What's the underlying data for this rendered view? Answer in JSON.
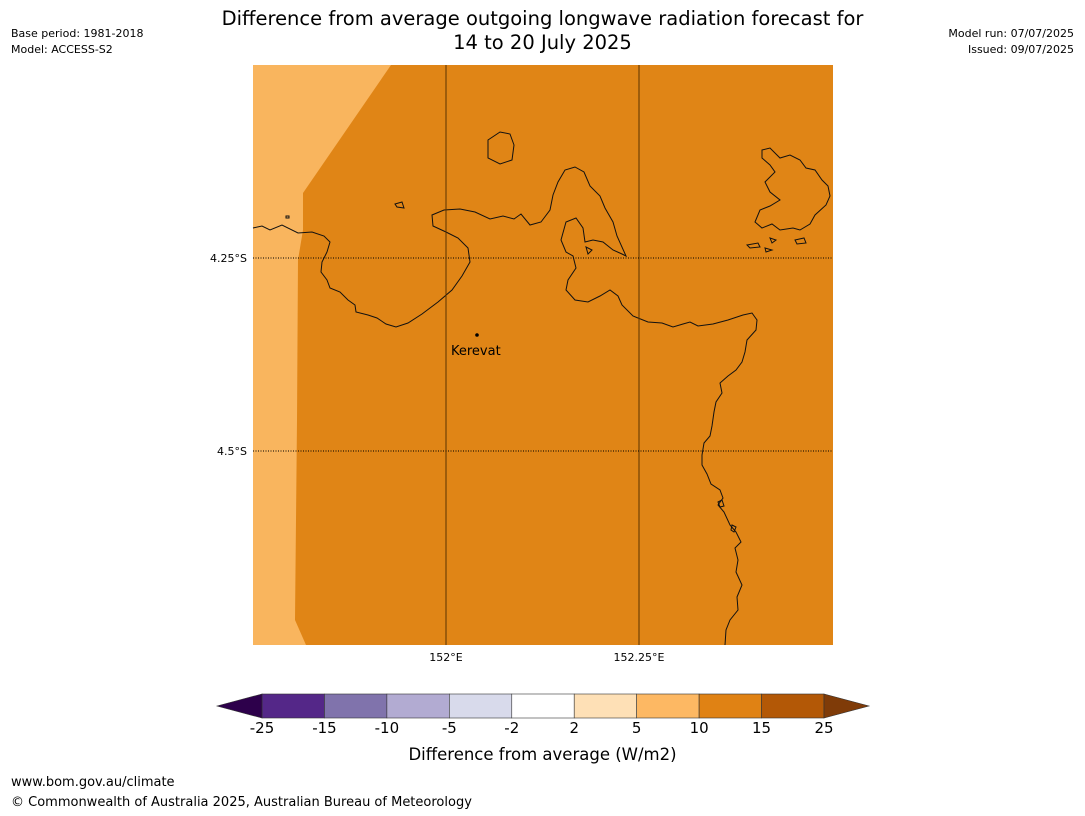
{
  "title": "Difference from average outgoing longwave radiation forecast for\n14 to 20 July 2025",
  "meta_left": {
    "base_period": "Base period: 1981-2018",
    "model": "Model: ACCESS-S2"
  },
  "meta_right": {
    "model_run": "Model run: 07/07/2025",
    "issued": "Issued: 09/07/2025"
  },
  "map": {
    "lon_ticks": [
      "152°E",
      "152.25°E"
    ],
    "lat_ticks": [
      "4.25°S",
      "4.5°S"
    ],
    "city": "Kerevat",
    "field_colors": {
      "main": "#e08516",
      "light": "#f9b55e"
    }
  },
  "colorbar": {
    "ticks": [
      "-25",
      "-15",
      "-10",
      "-5",
      "-2",
      "2",
      "5",
      "10",
      "15",
      "25"
    ],
    "colors": [
      "#542788",
      "#8073ac",
      "#b2abd2",
      "#d8daeb",
      "#ffffff",
      "#fee0b6",
      "#fdb863",
      "#e08214",
      "#b35806"
    ],
    "under_color": "#2d004b",
    "over_color": "#7f3b08",
    "label": "Difference from average (W/m2)"
  },
  "footer": {
    "url": "www.bom.gov.au/climate",
    "copyright": "© Commonwealth of Australia 2025, Australian Bureau of Meteorology"
  }
}
